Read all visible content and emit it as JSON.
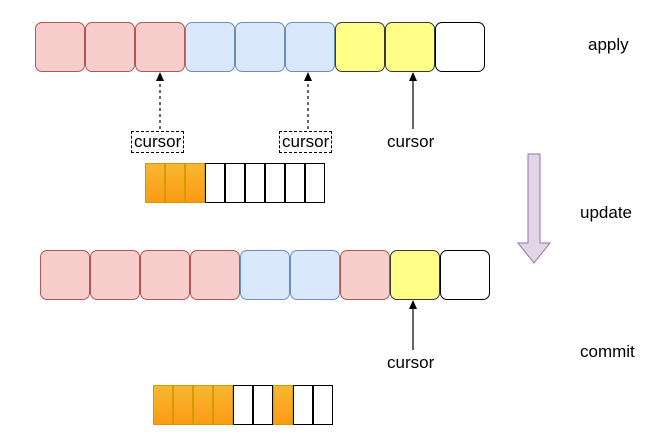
{
  "labels": {
    "apply": "apply",
    "update": "update",
    "commit": "commit",
    "cursor_a": "cursor",
    "cursor_b": "cursor",
    "cursor_c": "cursor",
    "cursor_d": "cursor"
  },
  "colors": {
    "pink": "#f8cecc",
    "blue": "#dae8fc",
    "yellow": "#ffff88",
    "orange": "#fc9a14",
    "down_arrow": "#e1d5e7"
  }
}
